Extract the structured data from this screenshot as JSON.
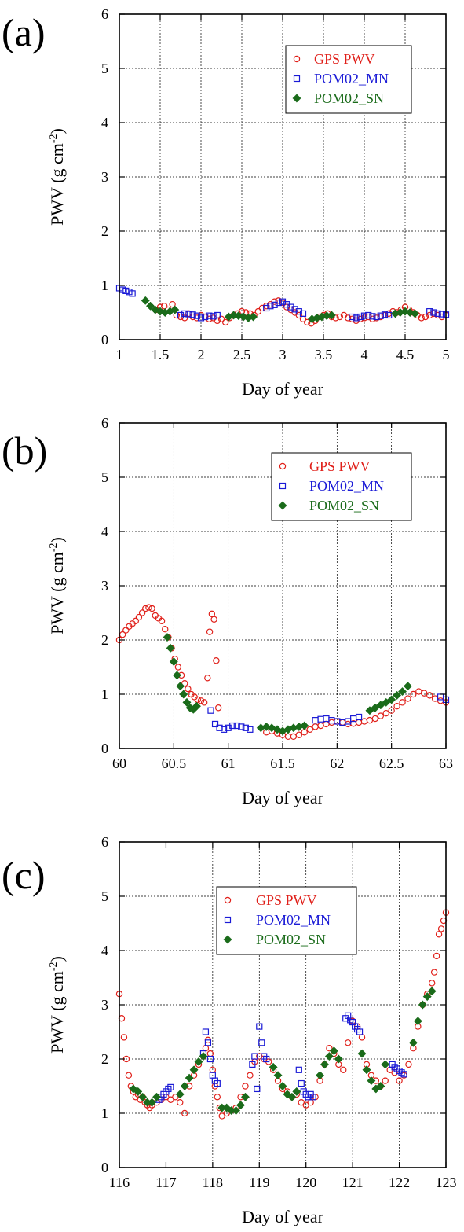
{
  "chart_data": [
    {
      "panel_label": "(a)",
      "type": "scatter",
      "xlabel": "Day of year",
      "ylabel_main": "PWV (g cm",
      "ylabel_sup": "-2",
      "ylabel_end": ")",
      "xlim": [
        1,
        5
      ],
      "ylim": [
        0,
        6
      ],
      "xticks": [
        1,
        1.5,
        2,
        2.5,
        3,
        3.5,
        4,
        4.5,
        5
      ],
      "xtick_labels": [
        "1",
        "1.5",
        "2",
        "2.5",
        "3",
        "3.5",
        "4",
        "4.5",
        "5"
      ],
      "yticks": [
        0,
        1,
        2,
        3,
        4,
        5,
        6
      ],
      "ytick_labels": [
        "0",
        "1",
        "2",
        "3",
        "4",
        "5",
        "6"
      ],
      "grid": true,
      "legend_position": "top-right",
      "series": [
        {
          "name": "GPS PWV",
          "marker": "circle",
          "color": "#e0201a",
          "x": [
            1.45,
            1.5,
            1.55,
            1.6,
            1.65,
            1.7,
            1.75,
            1.8,
            1.85,
            1.9,
            1.95,
            2.0,
            2.05,
            2.1,
            2.15,
            2.2,
            2.25,
            2.3,
            2.35,
            2.4,
            2.45,
            2.5,
            2.55,
            2.6,
            2.65,
            2.7,
            2.75,
            2.8,
            2.85,
            2.9,
            2.95,
            3.0,
            3.05,
            3.1,
            3.15,
            3.2,
            3.25,
            3.3,
            3.35,
            3.4,
            3.45,
            3.5,
            3.55,
            3.6,
            3.65,
            3.7,
            3.75,
            3.8,
            3.85,
            3.9,
            3.95,
            4.0,
            4.05,
            4.1,
            4.15,
            4.2,
            4.25,
            4.3,
            4.35,
            4.4,
            4.45,
            4.5,
            4.55,
            4.6,
            4.65,
            4.7,
            4.75,
            4.8,
            4.85,
            4.9,
            4.95,
            5.0
          ],
          "y": [
            0.55,
            0.6,
            0.62,
            0.55,
            0.65,
            0.45,
            0.42,
            0.4,
            0.48,
            0.42,
            0.4,
            0.45,
            0.42,
            0.38,
            0.4,
            0.35,
            0.38,
            0.32,
            0.4,
            0.45,
            0.48,
            0.52,
            0.5,
            0.48,
            0.45,
            0.52,
            0.58,
            0.62,
            0.65,
            0.7,
            0.72,
            0.68,
            0.6,
            0.55,
            0.5,
            0.45,
            0.38,
            0.32,
            0.3,
            0.35,
            0.42,
            0.45,
            0.48,
            0.42,
            0.4,
            0.42,
            0.45,
            0.4,
            0.38,
            0.35,
            0.38,
            0.4,
            0.42,
            0.38,
            0.4,
            0.42,
            0.45,
            0.48,
            0.52,
            0.5,
            0.55,
            0.6,
            0.55,
            0.5,
            0.45,
            0.4,
            0.42,
            0.45,
            0.48,
            0.45,
            0.42,
            0.45
          ]
        },
        {
          "name": "POM02_MN",
          "marker": "square",
          "color": "#1a1ad6",
          "x": [
            1.0,
            1.04,
            1.08,
            1.12,
            1.16,
            1.75,
            1.8,
            1.85,
            1.9,
            1.95,
            2.0,
            2.05,
            2.1,
            2.15,
            2.2,
            2.8,
            2.85,
            2.9,
            2.95,
            3.0,
            3.05,
            3.1,
            3.15,
            3.2,
            3.25,
            3.85,
            3.9,
            3.95,
            4.0,
            4.05,
            4.1,
            4.15,
            4.2,
            4.25,
            4.3,
            4.8,
            4.85,
            4.9,
            4.95,
            5.0
          ],
          "y": [
            0.95,
            0.92,
            0.9,
            0.88,
            0.85,
            0.45,
            0.48,
            0.47,
            0.46,
            0.44,
            0.4,
            0.42,
            0.44,
            0.43,
            0.45,
            0.58,
            0.62,
            0.64,
            0.68,
            0.7,
            0.65,
            0.6,
            0.56,
            0.52,
            0.48,
            0.42,
            0.4,
            0.42,
            0.44,
            0.45,
            0.43,
            0.42,
            0.44,
            0.46,
            0.45,
            0.52,
            0.5,
            0.48,
            0.47,
            0.46
          ]
        },
        {
          "name": "POM02_SN",
          "marker": "diamond",
          "color": "#1a6b1a",
          "x": [
            1.32,
            1.38,
            1.44,
            1.5,
            1.56,
            1.62,
            1.68,
            2.34,
            2.4,
            2.46,
            2.52,
            2.58,
            2.64,
            3.36,
            3.42,
            3.48,
            3.54,
            3.6,
            4.38,
            4.44,
            4.5,
            4.56,
            4.62
          ],
          "y": [
            0.72,
            0.62,
            0.55,
            0.52,
            0.5,
            0.52,
            0.55,
            0.42,
            0.45,
            0.44,
            0.42,
            0.4,
            0.42,
            0.38,
            0.4,
            0.42,
            0.44,
            0.45,
            0.48,
            0.5,
            0.52,
            0.5,
            0.48
          ]
        }
      ]
    },
    {
      "panel_label": "(b)",
      "type": "scatter",
      "xlabel": "Day of year",
      "ylabel_main": "PWV (g cm",
      "ylabel_sup": "-2",
      "ylabel_end": ")",
      "xlim": [
        60,
        63
      ],
      "ylim": [
        0,
        6
      ],
      "xticks": [
        60,
        60.5,
        61,
        61.5,
        62,
        62.5,
        63
      ],
      "xtick_labels": [
        "60",
        "60.5",
        "61",
        "61.5",
        "62",
        "62.5",
        "63"
      ],
      "yticks": [
        0,
        1,
        2,
        3,
        4,
        5,
        6
      ],
      "ytick_labels": [
        "0",
        "1",
        "2",
        "3",
        "4",
        "5",
        "6"
      ],
      "grid": true,
      "legend_position": "top-right",
      "series": [
        {
          "name": "GPS PWV",
          "marker": "circle",
          "color": "#e0201a",
          "x": [
            60.0,
            60.03,
            60.06,
            60.09,
            60.12,
            60.15,
            60.18,
            60.21,
            60.24,
            60.27,
            60.3,
            60.33,
            60.36,
            60.39,
            60.42,
            60.45,
            60.48,
            60.51,
            60.54,
            60.57,
            60.6,
            60.63,
            60.66,
            60.69,
            60.72,
            60.75,
            60.78,
            60.81,
            60.83,
            60.85,
            60.87,
            60.89,
            60.91,
            61.35,
            61.4,
            61.45,
            61.5,
            61.55,
            61.6,
            61.65,
            61.7,
            61.75,
            61.8,
            61.85,
            61.9,
            61.95,
            62.0,
            62.05,
            62.1,
            62.15,
            62.2,
            62.25,
            62.3,
            62.35,
            62.4,
            62.45,
            62.5,
            62.55,
            62.6,
            62.65,
            62.7,
            62.75,
            62.8,
            62.85,
            62.9,
            62.95,
            63.0
          ],
          "y": [
            2.0,
            2.1,
            2.18,
            2.25,
            2.3,
            2.35,
            2.42,
            2.5,
            2.58,
            2.6,
            2.58,
            2.45,
            2.4,
            2.35,
            2.2,
            2.05,
            1.85,
            1.65,
            1.5,
            1.35,
            1.2,
            1.1,
            1.0,
            0.95,
            0.9,
            0.88,
            0.85,
            1.3,
            2.15,
            2.48,
            2.38,
            1.62,
            0.75,
            0.3,
            0.32,
            0.28,
            0.25,
            0.22,
            0.22,
            0.25,
            0.3,
            0.35,
            0.4,
            0.42,
            0.45,
            0.48,
            0.5,
            0.48,
            0.45,
            0.46,
            0.48,
            0.5,
            0.52,
            0.55,
            0.6,
            0.65,
            0.7,
            0.78,
            0.85,
            0.92,
            1.0,
            1.05,
            1.02,
            0.98,
            0.92,
            0.88,
            0.85
          ]
        },
        {
          "name": "POM02_MN",
          "marker": "square",
          "color": "#1a1ad6",
          "x": [
            60.84,
            60.88,
            60.92,
            60.96,
            61.0,
            61.04,
            61.08,
            61.12,
            61.16,
            61.2,
            61.8,
            61.85,
            61.9,
            61.95,
            62.0,
            62.05,
            62.1,
            62.15,
            62.2,
            62.95,
            63.0
          ],
          "y": [
            0.7,
            0.45,
            0.38,
            0.35,
            0.38,
            0.42,
            0.42,
            0.4,
            0.38,
            0.35,
            0.52,
            0.54,
            0.55,
            0.52,
            0.5,
            0.48,
            0.5,
            0.55,
            0.58,
            0.95,
            0.9
          ]
        },
        {
          "name": "POM02_SN",
          "marker": "diamond",
          "color": "#1a6b1a",
          "x": [
            60.44,
            60.47,
            60.5,
            60.53,
            60.56,
            60.59,
            60.62,
            60.65,
            60.68,
            60.71,
            61.3,
            61.35,
            61.4,
            61.45,
            61.5,
            61.55,
            61.6,
            61.65,
            61.7,
            62.3,
            62.35,
            62.4,
            62.45,
            62.5,
            62.55,
            62.6,
            62.65
          ],
          "y": [
            2.05,
            1.85,
            1.6,
            1.35,
            1.15,
            1.0,
            0.85,
            0.75,
            0.72,
            0.78,
            0.38,
            0.4,
            0.38,
            0.35,
            0.32,
            0.35,
            0.38,
            0.4,
            0.42,
            0.7,
            0.75,
            0.8,
            0.85,
            0.9,
            0.98,
            1.05,
            1.15
          ]
        }
      ]
    },
    {
      "panel_label": "(c)",
      "type": "scatter",
      "xlabel": "Day of year",
      "ylabel_main": "PWV (g cm",
      "ylabel_sup": "-2",
      "ylabel_end": ")",
      "xlim": [
        116,
        123
      ],
      "ylim": [
        0,
        6
      ],
      "xticks": [
        116,
        117,
        118,
        119,
        120,
        121,
        122,
        123
      ],
      "xtick_labels": [
        "116",
        "117",
        "118",
        "119",
        "120",
        "121",
        "122",
        "123"
      ],
      "yticks": [
        0,
        1,
        2,
        3,
        4,
        5,
        6
      ],
      "ytick_labels": [
        "0",
        "1",
        "2",
        "3",
        "4",
        "5",
        "6"
      ],
      "grid": true,
      "legend_position": "top-center",
      "series": [
        {
          "name": "GPS PWV",
          "marker": "circle",
          "color": "#e0201a",
          "x": [
            116.0,
            116.05,
            116.1,
            116.15,
            116.2,
            116.25,
            116.3,
            116.35,
            116.4,
            116.45,
            116.5,
            116.55,
            116.6,
            116.65,
            116.7,
            116.8,
            116.9,
            117.0,
            117.1,
            117.2,
            117.3,
            117.4,
            117.5,
            117.6,
            117.7,
            117.8,
            117.85,
            117.9,
            117.95,
            118.0,
            118.05,
            118.1,
            118.15,
            118.2,
            118.3,
            118.4,
            118.5,
            118.6,
            118.7,
            118.8,
            118.9,
            119.0,
            119.1,
            119.2,
            119.3,
            119.4,
            119.5,
            119.6,
            119.7,
            119.8,
            119.9,
            120.0,
            120.1,
            120.2,
            120.3,
            120.4,
            120.5,
            120.6,
            120.7,
            120.8,
            120.9,
            121.0,
            121.1,
            121.2,
            121.3,
            121.4,
            121.5,
            121.6,
            121.7,
            121.8,
            121.9,
            122.0,
            122.1,
            122.2,
            122.3,
            122.4,
            122.5,
            122.6,
            122.7,
            122.75,
            122.8,
            122.85,
            122.9,
            122.95,
            123.0
          ],
          "y": [
            3.2,
            2.75,
            2.4,
            2.0,
            1.7,
            1.5,
            1.4,
            1.3,
            1.35,
            1.25,
            1.3,
            1.2,
            1.15,
            1.1,
            1.15,
            1.2,
            1.25,
            1.3,
            1.25,
            1.3,
            1.2,
            1.0,
            1.5,
            1.7,
            1.9,
            2.05,
            2.2,
            2.35,
            2.1,
            1.8,
            1.5,
            1.3,
            1.1,
            0.95,
            1.0,
            1.05,
            1.1,
            1.3,
            1.5,
            1.7,
            1.95,
            2.05,
            2.0,
            1.95,
            1.8,
            1.6,
            1.45,
            1.4,
            1.3,
            1.35,
            1.2,
            1.15,
            1.2,
            1.3,
            1.6,
            1.9,
            2.2,
            2.1,
            1.9,
            1.8,
            2.3,
            2.7,
            2.6,
            2.4,
            1.9,
            1.7,
            1.6,
            1.5,
            1.6,
            1.8,
            1.75,
            1.6,
            1.7,
            1.9,
            2.2,
            2.6,
            3.0,
            3.2,
            3.4,
            3.6,
            3.9,
            4.3,
            4.4,
            4.55,
            4.7
          ]
        },
        {
          "name": "POM02_MN",
          "marker": "square",
          "color": "#1a1ad6",
          "x": [
            116.85,
            116.9,
            116.95,
            117.0,
            117.05,
            117.1,
            117.8,
            117.85,
            117.9,
            117.95,
            118.0,
            118.05,
            118.1,
            118.85,
            118.9,
            118.95,
            119.0,
            119.05,
            119.1,
            119.15,
            119.85,
            119.9,
            119.95,
            120.0,
            120.05,
            120.1,
            120.15,
            120.85,
            120.9,
            120.95,
            121.0,
            121.05,
            121.1,
            121.15,
            121.85,
            121.9,
            121.95,
            122.0,
            122.05,
            122.1
          ],
          "y": [
            1.25,
            1.3,
            1.35,
            1.4,
            1.45,
            1.48,
            2.1,
            2.5,
            2.3,
            2.0,
            1.7,
            1.6,
            1.55,
            1.9,
            2.05,
            1.45,
            2.6,
            2.3,
            2.05,
            2.0,
            1.8,
            1.55,
            1.4,
            1.35,
            1.3,
            1.35,
            1.3,
            2.75,
            2.8,
            2.72,
            2.68,
            2.6,
            2.55,
            2.5,
            1.9,
            1.85,
            1.82,
            1.78,
            1.75,
            1.72
          ]
        },
        {
          "name": "POM02_SN",
          "marker": "diamond",
          "color": "#1a6b1a",
          "x": [
            116.3,
            116.4,
            116.5,
            116.6,
            116.7,
            116.8,
            117.3,
            117.4,
            117.5,
            117.6,
            117.7,
            117.8,
            118.2,
            118.3,
            118.4,
            118.5,
            118.6,
            118.7,
            119.3,
            119.4,
            119.5,
            119.6,
            119.7,
            119.8,
            120.3,
            120.4,
            120.5,
            120.6,
            120.7,
            121.2,
            121.3,
            121.4,
            121.5,
            121.6,
            121.7,
            122.3,
            122.4,
            122.5,
            122.6,
            122.7
          ],
          "y": [
            1.45,
            1.4,
            1.3,
            1.2,
            1.2,
            1.3,
            1.35,
            1.5,
            1.65,
            1.8,
            1.95,
            2.05,
            1.1,
            1.1,
            1.05,
            1.05,
            1.15,
            1.3,
            1.85,
            1.7,
            1.5,
            1.35,
            1.3,
            1.4,
            1.7,
            1.9,
            2.05,
            2.15,
            2.0,
            2.1,
            1.8,
            1.6,
            1.45,
            1.5,
            1.9,
            2.3,
            2.7,
            3.0,
            3.15,
            3.25
          ]
        }
      ]
    }
  ]
}
